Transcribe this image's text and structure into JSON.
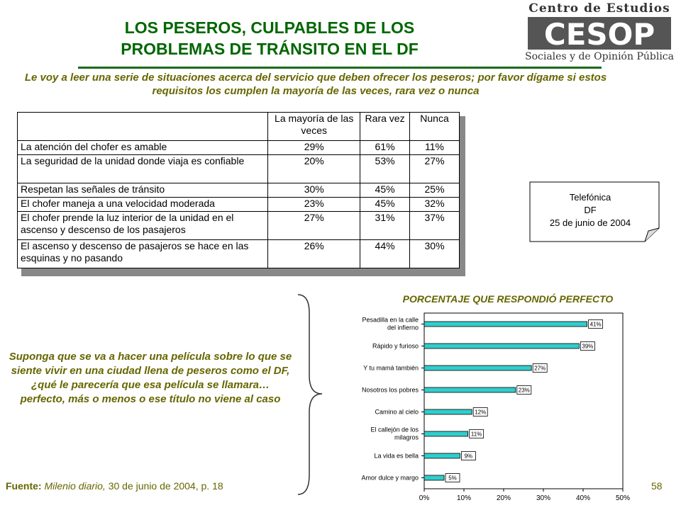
{
  "header": {
    "title_line1": "LOS PESEROS, CULPABLES DE LOS",
    "title_line2": "PROBLEMAS DE TRÁNSITO EN EL DF",
    "logo_top": "Centro de Estudios",
    "logo_mark": "CESOP",
    "logo_bottom": "Sociales y de Opinión Pública",
    "accent_color": "#006600"
  },
  "question_text": "Le voy a leer una serie de situaciones acerca del servicio que deben ofrecer los peseros; por favor dígame si estos requisitos los cumplen la mayoría de las veces, rara vez o nunca",
  "survey_table": {
    "headers": [
      "",
      "La mayoría de las veces",
      "Rara vez",
      "Nunca"
    ],
    "rows": [
      {
        "item": "La atención del chofer es amable",
        "mayoria": "29%",
        "rara": "61%",
        "nunca": "11%"
      },
      {
        "item": "La seguridad de la unidad donde viaja es confiable",
        "mayoria": "20%",
        "rara": "53%",
        "nunca": "27%"
      },
      {
        "item": "Respetan las señales de tránsito",
        "mayoria": "30%",
        "rara": "45%",
        "nunca": "25%"
      },
      {
        "item": "El chofer maneja a una velocidad moderada",
        "mayoria": "23%",
        "rara": "45%",
        "nunca": "32%"
      },
      {
        "item": "El chofer prende la luz interior de la unidad en el ascenso y descenso de los pasajeros",
        "mayoria": "27%",
        "rara": "31%",
        "nunca": "37%"
      },
      {
        "item": "El ascenso y descenso de pasajeros se hace en las esquinas y no pasando",
        "mayoria": "26%",
        "rara": "44%",
        "nunca": "30%"
      }
    ]
  },
  "note": {
    "line1": "Telefónica",
    "line2": "DF",
    "line3": "25 de junio de 2004"
  },
  "suppose_text": "Suponga que se va a hacer una película sobre lo que se siente vivir en una ciudad llena de peseros como el DF, ¿qué le parecería que esa película se llamara… perfecto, más o menos o ese título no viene al caso",
  "source": {
    "label": "Fuente:",
    "publication": "Milenio diario,",
    "detail": "30 de junio de 2004, p. 18"
  },
  "page_number": "58",
  "chart_data": {
    "type": "bar",
    "orientation": "horizontal",
    "title": "PORCENTAJE QUE RESPONDIÓ PERFECTO",
    "categories": [
      "Pesadilla en la calle del infierno",
      "Rápido y furioso",
      "Y tu mamá también",
      "Nosotros los pobres",
      "Camino al cielo",
      "El callejón de los milagros",
      "La vida es bella",
      "Amor dulce y margo"
    ],
    "values": [
      41,
      39,
      27,
      23,
      12,
      11,
      9,
      5
    ],
    "value_labels": [
      "41%",
      "39%",
      "27%",
      "23%",
      "12%",
      "11%",
      "9%",
      "5%"
    ],
    "xlim": [
      0,
      50
    ],
    "xticks": [
      "0%",
      "10%",
      "20%",
      "30%",
      "40%",
      "50%"
    ],
    "bar_color": "#33cccc",
    "grid": false,
    "legend": "none"
  }
}
